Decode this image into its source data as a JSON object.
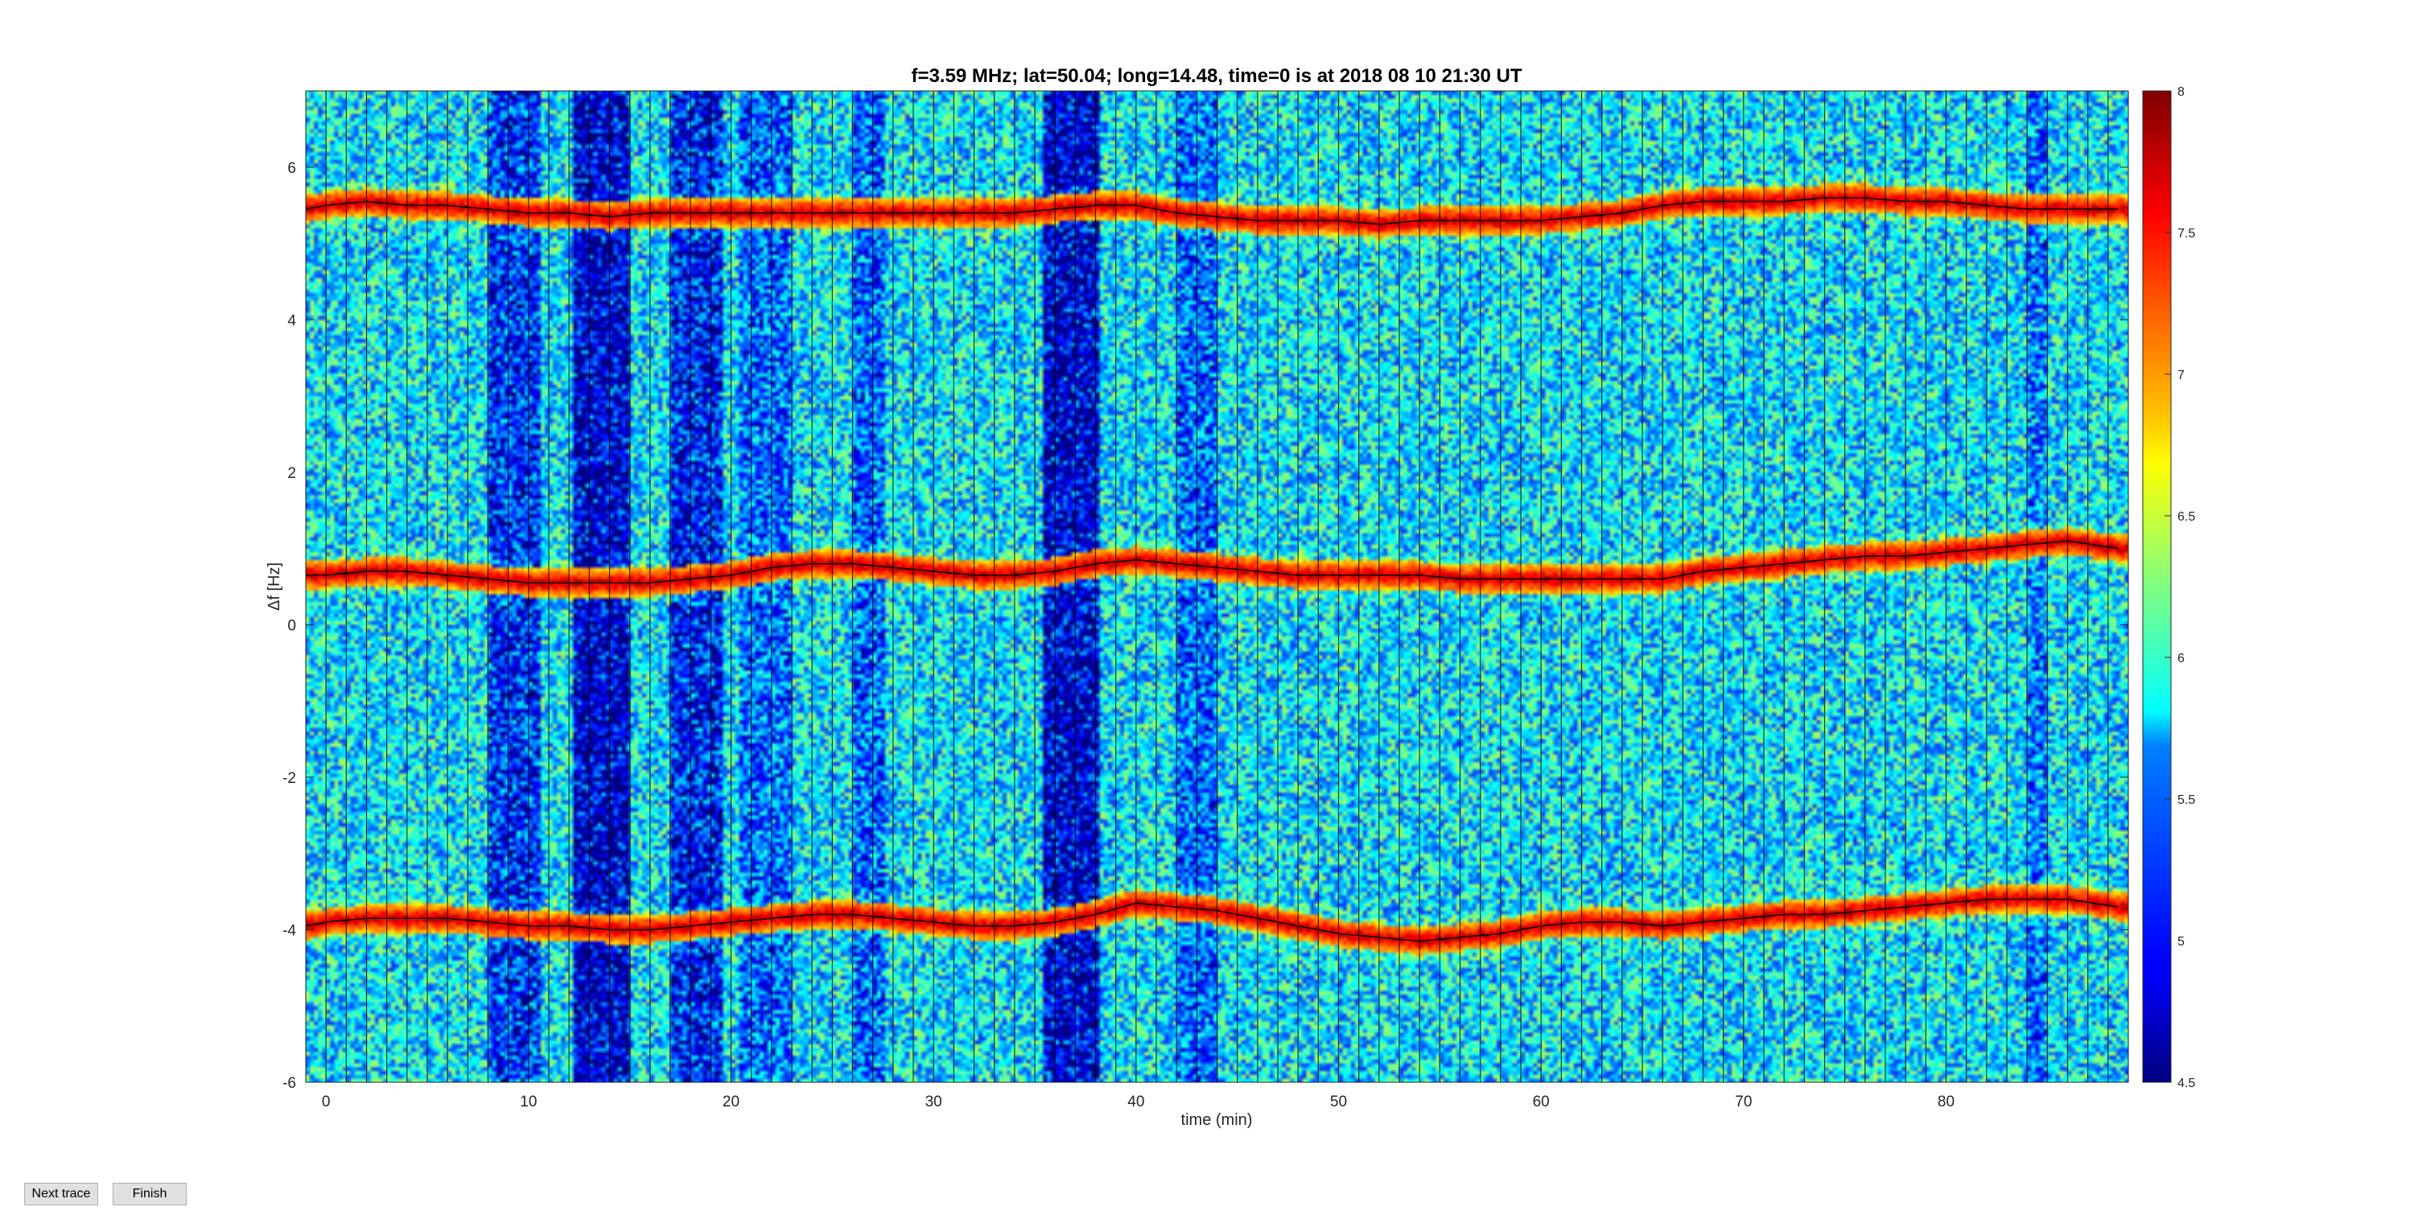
{
  "chart_data": {
    "type": "heatmap",
    "title": "f=3.59 MHz;  lat=50.04; long=14.48, time=0 is at 2018 08 10 21:30 UT",
    "xlabel": "time (min)",
    "ylabel": "Δf [Hz]",
    "xlim": [
      -1,
      89
    ],
    "ylim": [
      -6,
      7
    ],
    "xticks": [
      0,
      10,
      20,
      30,
      40,
      50,
      60,
      70,
      80
    ],
    "yticks": [
      -6,
      -4,
      -2,
      0,
      2,
      4,
      6
    ],
    "colorbar": {
      "colormap": "jet",
      "range": [
        4.5,
        8
      ],
      "ticks": [
        4.5,
        5,
        5.5,
        6,
        6.5,
        7,
        7.5,
        8
      ]
    },
    "grid": false,
    "series": [
      {
        "x": [
          -1,
          0,
          2,
          4,
          6,
          8,
          10,
          12,
          14,
          16,
          18,
          20,
          22,
          24,
          26,
          28,
          30,
          32,
          34,
          36,
          38,
          40,
          42,
          44,
          46,
          48,
          50,
          52,
          54,
          56,
          58,
          60,
          62,
          64,
          66,
          68,
          70,
          72,
          74,
          76,
          78,
          80,
          82,
          84,
          86,
          88.5
        ],
        "y": [
          5.45,
          5.5,
          5.55,
          5.5,
          5.5,
          5.45,
          5.4,
          5.4,
          5.35,
          5.4,
          5.4,
          5.4,
          5.4,
          5.4,
          5.4,
          5.4,
          5.4,
          5.4,
          5.4,
          5.45,
          5.5,
          5.5,
          5.4,
          5.35,
          5.3,
          5.3,
          5.3,
          5.25,
          5.3,
          5.3,
          5.3,
          5.3,
          5.35,
          5.4,
          5.5,
          5.55,
          5.55,
          5.55,
          5.6,
          5.6,
          5.55,
          5.55,
          5.5,
          5.45,
          5.45,
          5.45
        ]
      },
      {
        "x": [
          -1,
          0,
          2,
          4,
          6,
          8,
          10,
          12,
          14,
          16,
          18,
          20,
          22,
          24,
          26,
          28,
          30,
          32,
          34,
          36,
          38,
          40,
          42,
          44,
          46,
          48,
          50,
          52,
          54,
          56,
          58,
          60,
          62,
          64,
          66,
          68,
          70,
          72,
          74,
          76,
          78,
          80,
          82,
          84,
          86,
          88.5
        ],
        "y": [
          0.65,
          0.65,
          0.7,
          0.7,
          0.65,
          0.6,
          0.55,
          0.55,
          0.55,
          0.55,
          0.6,
          0.65,
          0.75,
          0.8,
          0.8,
          0.75,
          0.7,
          0.65,
          0.65,
          0.7,
          0.8,
          0.85,
          0.8,
          0.75,
          0.7,
          0.65,
          0.65,
          0.65,
          0.65,
          0.6,
          0.6,
          0.6,
          0.6,
          0.6,
          0.6,
          0.7,
          0.75,
          0.8,
          0.85,
          0.9,
          0.9,
          0.95,
          1.0,
          1.05,
          1.1,
          1.0
        ]
      },
      {
        "x": [
          -1,
          0,
          2,
          4,
          6,
          8,
          10,
          12,
          14,
          16,
          18,
          20,
          22,
          24,
          26,
          28,
          30,
          32,
          34,
          36,
          38,
          40,
          42,
          44,
          46,
          48,
          50,
          52,
          54,
          56,
          58,
          60,
          62,
          64,
          66,
          68,
          70,
          72,
          74,
          76,
          78,
          80,
          82,
          84,
          86,
          88.5
        ],
        "y": [
          -3.95,
          -3.9,
          -3.85,
          -3.85,
          -3.85,
          -3.9,
          -3.95,
          -3.95,
          -4.0,
          -4.0,
          -3.95,
          -3.9,
          -3.85,
          -3.8,
          -3.8,
          -3.85,
          -3.9,
          -3.95,
          -3.95,
          -3.9,
          -3.8,
          -3.65,
          -3.7,
          -3.75,
          -3.85,
          -3.95,
          -4.05,
          -4.1,
          -4.15,
          -4.1,
          -4.05,
          -3.95,
          -3.9,
          -3.9,
          -3.95,
          -3.9,
          -3.85,
          -3.8,
          -3.8,
          -3.75,
          -3.7,
          -3.65,
          -3.6,
          -3.6,
          -3.6,
          -3.7
        ]
      }
    ]
  },
  "buttons": {
    "next_trace": "Next trace",
    "finish": "Finish"
  },
  "colors": {
    "background": "#ffffff",
    "trace_line": "#000000",
    "axis": "#262626"
  }
}
